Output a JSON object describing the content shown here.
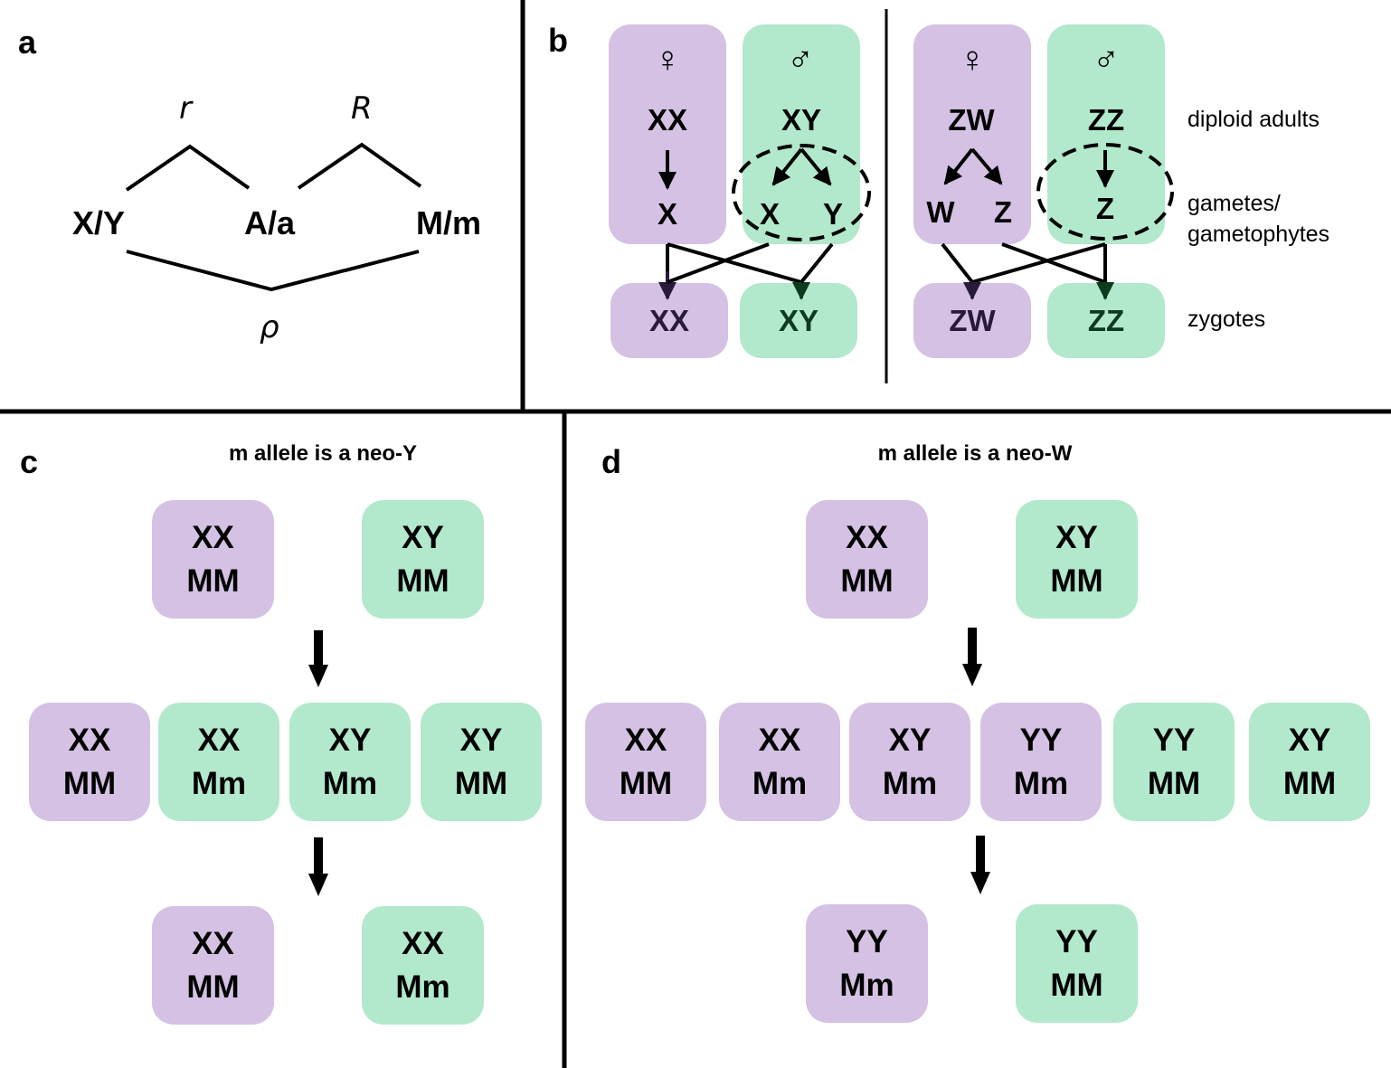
{
  "colors": {
    "female": "#d4c1e3",
    "male": "#b2e8cb",
    "line": "#000000"
  },
  "panel_a": {
    "label": "a",
    "loci": [
      "X/Y",
      "A/a",
      "M/m"
    ],
    "rates": {
      "r": "r",
      "R": "R",
      "rho": "ρ"
    }
  },
  "panel_b": {
    "label": "b",
    "female_symbol": "♀",
    "male_symbol": "♂",
    "xy": {
      "female_adult": "XX",
      "male_adult": "XY",
      "female_gamete": "X",
      "male_gametes": [
        "X",
        "Y"
      ],
      "zygotes": [
        "XX",
        "XY"
      ]
    },
    "zw": {
      "female_adult": "ZW",
      "male_adult": "ZZ",
      "female_gametes": [
        "W",
        "Z"
      ],
      "male_gamete": "Z",
      "zygotes": [
        "ZW",
        "ZZ"
      ]
    },
    "side_labels": {
      "adults": "diploid adults",
      "gametes_line1": "gametes/",
      "gametes_line2": "gametophytes",
      "zygotes": "zygotes"
    }
  },
  "panel_c": {
    "label": "c",
    "title": "m allele is a neo-Y",
    "row1": [
      {
        "sex": "f",
        "l1": "XX",
        "l2": "MM"
      },
      {
        "sex": "m",
        "l1": "XY",
        "l2": "MM"
      }
    ],
    "row2": [
      {
        "sex": "f",
        "l1": "XX",
        "l2": "MM"
      },
      {
        "sex": "m",
        "l1": "XX",
        "l2": "Mm"
      },
      {
        "sex": "m",
        "l1": "XY",
        "l2": "Mm"
      },
      {
        "sex": "m",
        "l1": "XY",
        "l2": "MM"
      }
    ],
    "row3": [
      {
        "sex": "f",
        "l1": "XX",
        "l2": "MM"
      },
      {
        "sex": "m",
        "l1": "XX",
        "l2": "Mm"
      }
    ]
  },
  "panel_d": {
    "label": "d",
    "title": "m allele is a neo-W",
    "row1": [
      {
        "sex": "f",
        "l1": "XX",
        "l2": "MM"
      },
      {
        "sex": "m",
        "l1": "XY",
        "l2": "MM"
      }
    ],
    "row2": [
      {
        "sex": "f",
        "l1": "XX",
        "l2": "MM"
      },
      {
        "sex": "f",
        "l1": "XX",
        "l2": "Mm"
      },
      {
        "sex": "f",
        "l1": "XY",
        "l2": "Mm"
      },
      {
        "sex": "f",
        "l1": "YY",
        "l2": "Mm"
      },
      {
        "sex": "m",
        "l1": "YY",
        "l2": "MM"
      },
      {
        "sex": "m",
        "l1": "XY",
        "l2": "MM"
      }
    ],
    "row3": [
      {
        "sex": "f",
        "l1": "YY",
        "l2": "Mm"
      },
      {
        "sex": "m",
        "l1": "YY",
        "l2": "MM"
      }
    ]
  }
}
